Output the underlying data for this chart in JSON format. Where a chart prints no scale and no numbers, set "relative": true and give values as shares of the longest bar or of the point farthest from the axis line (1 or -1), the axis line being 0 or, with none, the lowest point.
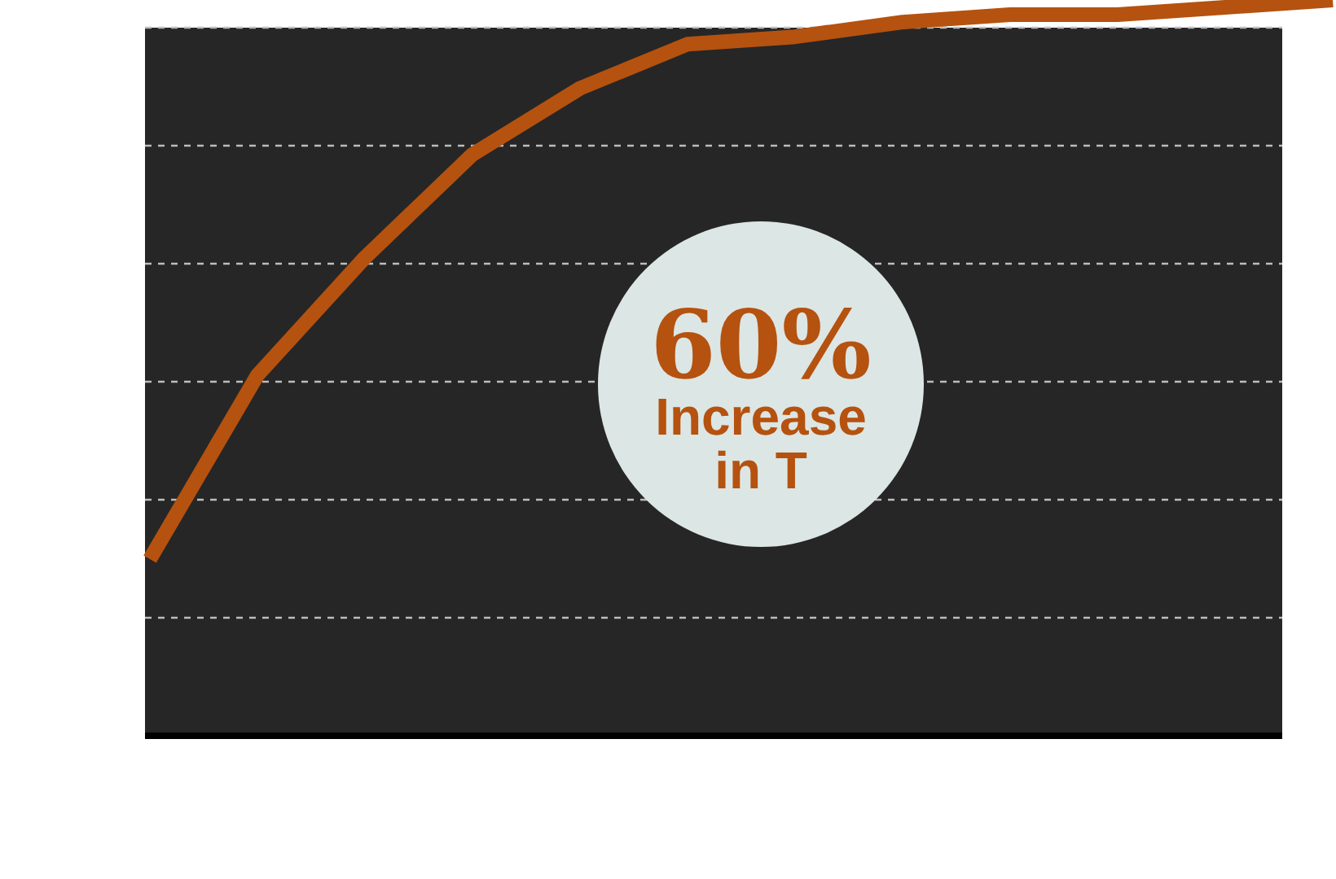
{
  "chart_data": {
    "type": "line",
    "relative": true,
    "categories": [
      null,
      null,
      null,
      null,
      null,
      null,
      null,
      null,
      null,
      null,
      null,
      null
    ],
    "series": [
      {
        "color": "#b5520f",
        "values": [
          0.24,
          0.49,
          0.65,
          0.79,
          0.88,
          0.94,
          0.95,
          0.97,
          0.98,
          0.98,
          0.99,
          1
        ]
      }
    ],
    "annotations": [
      "60%",
      "Increase in T"
    ],
    "grid": "y",
    "marker": "none",
    "line_style": "solid"
  }
}
